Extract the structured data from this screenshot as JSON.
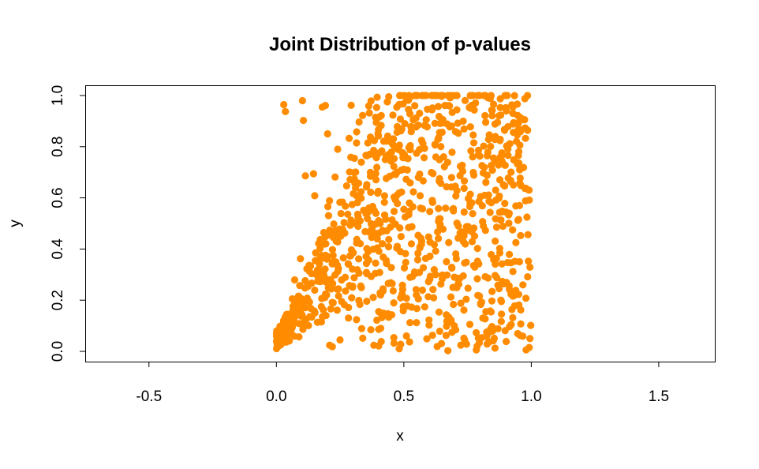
{
  "chart_data": {
    "type": "scatter",
    "title": "Joint Distribution of p-values",
    "xlabel": "x",
    "ylabel": "y",
    "xlim": [
      -0.75,
      1.72
    ],
    "ylim": [
      -0.04,
      1.04
    ],
    "xticks": [
      -0.5,
      0.0,
      0.5,
      1.0,
      1.5
    ],
    "xtick_labels": [
      "-0.5",
      "0.0",
      "0.5",
      "1.0",
      "1.5"
    ],
    "yticks": [
      0.0,
      0.2,
      0.4,
      0.6,
      0.8,
      1.0
    ],
    "ytick_labels": [
      "0.0",
      "0.2",
      "0.4",
      "0.6",
      "0.8",
      "1.0"
    ],
    "grid": false,
    "point_color": "#FF8C00",
    "point_count": 1000,
    "distribution_note_x_range": [
      0.0,
      1.0
    ],
    "distribution_note_y_range": [
      0.0,
      1.0
    ],
    "seed": 20240607
  }
}
